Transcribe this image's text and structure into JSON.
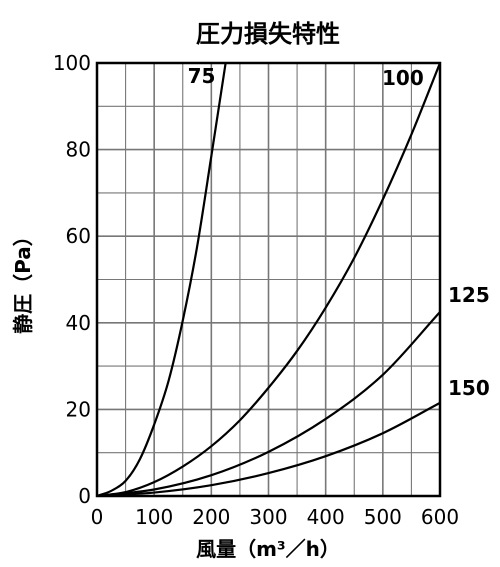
{
  "chart_data": {
    "type": "line",
    "title": "圧力損失特性",
    "xlabel": "風量（m³／h）",
    "ylabel": "静圧（Pa）",
    "xlim": [
      0,
      600
    ],
    "ylim": [
      0,
      100
    ],
    "x_ticks": [
      "0",
      "100",
      "200",
      "300",
      "400",
      "500",
      "600"
    ],
    "y_ticks": [
      "0",
      "20",
      "40",
      "60",
      "80",
      "100"
    ],
    "grid": true,
    "legend": "none",
    "series": [
      {
        "name": "75",
        "x": [
          0,
          25,
          50,
          75,
          100,
          125,
          150,
          175,
          200,
          225
        ],
        "y": [
          0,
          1.2,
          3.5,
          8.5,
          16.5,
          26.5,
          40.5,
          57.5,
          78.5,
          100
        ]
      },
      {
        "name": "100",
        "x": [
          0,
          50,
          100,
          150,
          200,
          250,
          300,
          350,
          400,
          450,
          500,
          550,
          600
        ],
        "y": [
          0,
          0.9,
          3.2,
          6.8,
          11.5,
          17.5,
          25,
          33.5,
          43.5,
          55,
          68.5,
          83.5,
          100
        ]
      },
      {
        "name": "125",
        "x": [
          0,
          100,
          200,
          300,
          400,
          500,
          600
        ],
        "y": [
          0,
          1.5,
          4.8,
          10.2,
          17.8,
          28,
          42.5
        ]
      },
      {
        "name": "150",
        "x": [
          0,
          100,
          200,
          300,
          400,
          500,
          600
        ],
        "y": [
          0,
          0.8,
          2.5,
          5.3,
          9.2,
          14.5,
          21.5
        ]
      }
    ]
  }
}
